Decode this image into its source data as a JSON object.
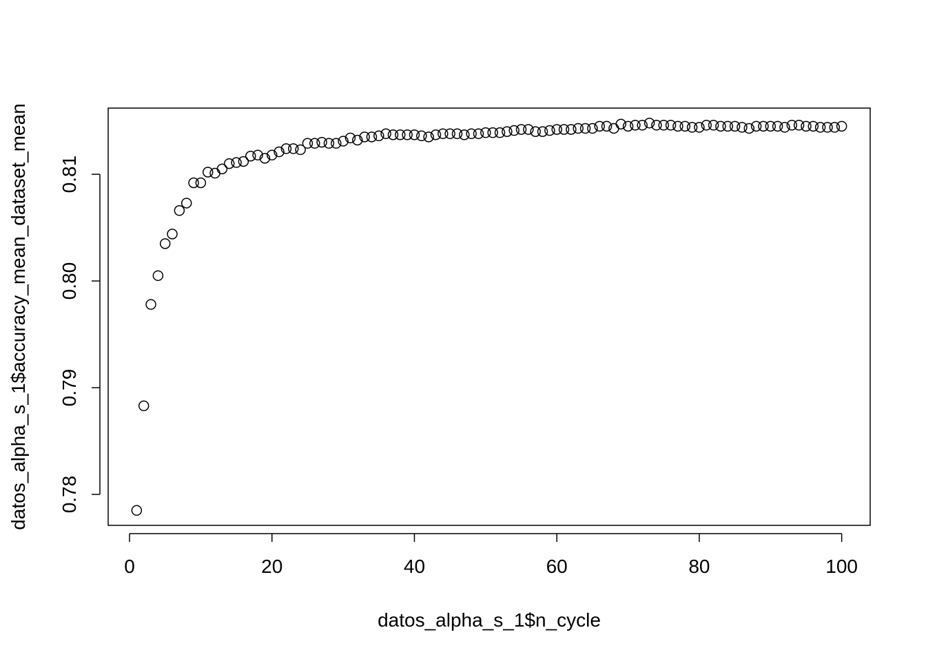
{
  "chart_data": {
    "type": "scatter",
    "title": "",
    "xlabel": "datos_alpha_s_1$n_cycle",
    "ylabel": "datos_alpha_s_1$accuracy_mean_dataset_mean",
    "xlim": [
      -3,
      104
    ],
    "ylim": [
      0.7771,
      0.8162
    ],
    "x_ticks": [
      0,
      20,
      40,
      60,
      80,
      100
    ],
    "x_tick_labels": [
      "0",
      "20",
      "40",
      "60",
      "80",
      "100"
    ],
    "y_ticks": [
      0.78,
      0.79,
      0.8,
      0.81
    ],
    "y_tick_labels": [
      "0.78",
      "0.79",
      "0.80",
      "0.81"
    ],
    "grid": false,
    "marker": "open-circle",
    "point_color": "#000000",
    "series": [
      {
        "x": [
          1,
          2,
          3,
          4,
          5,
          6,
          7,
          8,
          9,
          10,
          11,
          12,
          13,
          14,
          15,
          16,
          17,
          18,
          19,
          20,
          21,
          22,
          23,
          24,
          25,
          26,
          27,
          28,
          29,
          30,
          31,
          32,
          33,
          34,
          35,
          36,
          37,
          38,
          39,
          40,
          41,
          42,
          43,
          44,
          45,
          46,
          47,
          48,
          49,
          50,
          51,
          52,
          53,
          54,
          55,
          56,
          57,
          58,
          59,
          60,
          61,
          62,
          63,
          64,
          65,
          66,
          67,
          68,
          69,
          70,
          71,
          72,
          73,
          74,
          75,
          76,
          77,
          78,
          79,
          80,
          81,
          82,
          83,
          84,
          85,
          86,
          87,
          88,
          89,
          90,
          91,
          92,
          93,
          94,
          95,
          96,
          97,
          98,
          99,
          100
        ],
        "y": [
          0.7785,
          0.7883,
          0.7978,
          0.8005,
          0.8035,
          0.8044,
          0.8066,
          0.8073,
          0.8092,
          0.8092,
          0.8102,
          0.8101,
          0.8105,
          0.811,
          0.8111,
          0.8112,
          0.8117,
          0.8118,
          0.8115,
          0.8118,
          0.8121,
          0.8124,
          0.8124,
          0.8123,
          0.8129,
          0.8129,
          0.813,
          0.8129,
          0.8129,
          0.8131,
          0.8134,
          0.8132,
          0.8135,
          0.8135,
          0.8136,
          0.8138,
          0.8137,
          0.8137,
          0.8137,
          0.8137,
          0.8136,
          0.8135,
          0.8137,
          0.8138,
          0.8138,
          0.8138,
          0.8137,
          0.8138,
          0.8138,
          0.8139,
          0.8139,
          0.8139,
          0.814,
          0.8141,
          0.8142,
          0.8142,
          0.814,
          0.814,
          0.8141,
          0.8142,
          0.8142,
          0.8142,
          0.8143,
          0.8143,
          0.8143,
          0.8145,
          0.8145,
          0.8143,
          0.8147,
          0.8145,
          0.8146,
          0.8146,
          0.8148,
          0.8146,
          0.8146,
          0.8146,
          0.8145,
          0.8145,
          0.8144,
          0.8144,
          0.8146,
          0.8146,
          0.8145,
          0.8145,
          0.8145,
          0.8144,
          0.8143,
          0.8145,
          0.8145,
          0.8145,
          0.8145,
          0.8144,
          0.8146,
          0.8146,
          0.8145,
          0.8145,
          0.8144,
          0.8144,
          0.8144,
          0.8145
        ]
      }
    ]
  }
}
